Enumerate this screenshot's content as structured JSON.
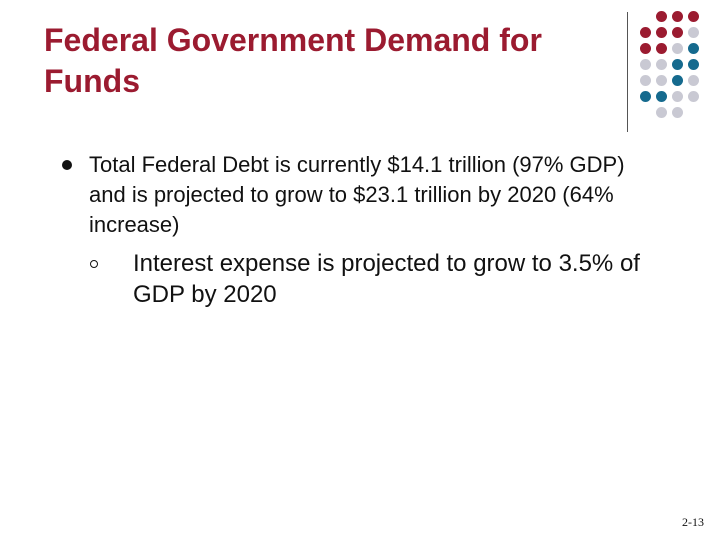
{
  "slide": {
    "title": "Federal Government Demand for Funds",
    "bullet": "Total Federal Debt is currently $14.1 trillion (97% GDP) and is projected to grow to $23.1 trillion by 2020 (64% increase)",
    "sub_bullet": "Interest expense is projected to grow to 3.5% of GDP by 2020",
    "slide_number": "2-13"
  },
  "decoration": {
    "colors": {
      "red": "#9b1b30",
      "gray": "#c9c9d3",
      "blue": "#156a8e"
    },
    "dot_grid": [
      [
        "none",
        "red",
        "red",
        "red"
      ],
      [
        "red",
        "red",
        "red",
        "gray"
      ],
      [
        "red",
        "red",
        "gray",
        "blue"
      ],
      [
        "gray",
        "gray",
        "blue",
        "blue"
      ],
      [
        "gray",
        "gray",
        "blue",
        "gray"
      ],
      [
        "blue",
        "blue",
        "gray",
        "gray"
      ],
      [
        "none",
        "gray",
        "gray",
        "none"
      ]
    ]
  }
}
